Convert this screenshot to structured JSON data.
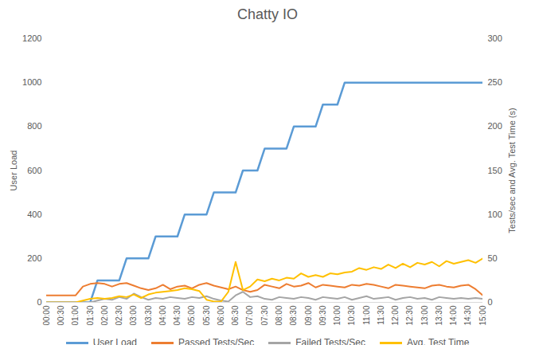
{
  "chart_data": {
    "type": "line",
    "title": "Chatty IO",
    "y_label": "User Load",
    "y2_label": "Tests/sec and Avg. Test Time (s)",
    "x": [
      0,
      15,
      30,
      45,
      60,
      75,
      90,
      105,
      120,
      135,
      150,
      165,
      180,
      195,
      210,
      225,
      240,
      255,
      270,
      285,
      300,
      315,
      330,
      345,
      360,
      375,
      390,
      405,
      420,
      435,
      450,
      465,
      480,
      495,
      510,
      525,
      540,
      555,
      570,
      585,
      600,
      615,
      630,
      645,
      660,
      675,
      690,
      705,
      720,
      735,
      750,
      765,
      780,
      795,
      810,
      825,
      840,
      855,
      870,
      885,
      900
    ],
    "xlim": [
      0,
      900
    ],
    "xticks": [
      {
        "value": 0,
        "label": "00:00"
      },
      {
        "value": 30,
        "label": "00:30"
      },
      {
        "value": 60,
        "label": "01:00"
      },
      {
        "value": 90,
        "label": "01:30"
      },
      {
        "value": 120,
        "label": "02:00"
      },
      {
        "value": 150,
        "label": "02:30"
      },
      {
        "value": 180,
        "label": "03:00"
      },
      {
        "value": 210,
        "label": "03:30"
      },
      {
        "value": 240,
        "label": "04:00"
      },
      {
        "value": 270,
        "label": "04:30"
      },
      {
        "value": 300,
        "label": "05:00"
      },
      {
        "value": 330,
        "label": "05:30"
      },
      {
        "value": 360,
        "label": "06:00"
      },
      {
        "value": 390,
        "label": "06:30"
      },
      {
        "value": 420,
        "label": "07:00"
      },
      {
        "value": 450,
        "label": "07:30"
      },
      {
        "value": 480,
        "label": "08:00"
      },
      {
        "value": 510,
        "label": "08:30"
      },
      {
        "value": 540,
        "label": "09:00"
      },
      {
        "value": 570,
        "label": "09:30"
      },
      {
        "value": 600,
        "label": "10:00"
      },
      {
        "value": 630,
        "label": "10:30"
      },
      {
        "value": 660,
        "label": "11:00"
      },
      {
        "value": 690,
        "label": "11:30"
      },
      {
        "value": 720,
        "label": "12:00"
      },
      {
        "value": 750,
        "label": "12:30"
      },
      {
        "value": 780,
        "label": "13:00"
      },
      {
        "value": 810,
        "label": "13:30"
      },
      {
        "value": 840,
        "label": "14:00"
      },
      {
        "value": 870,
        "label": "14:30"
      },
      {
        "value": 900,
        "label": "15:00"
      }
    ],
    "ylim": [
      0,
      1200
    ],
    "yticks": [
      0,
      200,
      400,
      600,
      800,
      1000,
      1200
    ],
    "y2lim": [
      0,
      300
    ],
    "y2ticks": [
      0,
      50,
      100,
      150,
      200,
      250,
      300
    ],
    "grid": false,
    "legend": "bottom",
    "series": [
      {
        "name": "User Load",
        "color": "#5b9bd5",
        "values": [
          0,
          0,
          0,
          0,
          0,
          0,
          0,
          100,
          100,
          100,
          100,
          200,
          200,
          200,
          200,
          300,
          300,
          300,
          300,
          400,
          400,
          400,
          400,
          500,
          500,
          500,
          500,
          600,
          600,
          600,
          700,
          700,
          700,
          700,
          800,
          800,
          800,
          800,
          900,
          900,
          900,
          1000,
          1000,
          1000,
          1000,
          1000,
          1000,
          1000,
          1000,
          1000,
          1000,
          1000,
          1000,
          1000,
          1000,
          1000,
          1000,
          1000,
          1000,
          1000,
          1000
        ]
      },
      {
        "name": "Passed Tests/Sec",
        "color": "#ed7d31",
        "axis": "y2",
        "values": [
          8,
          8,
          8,
          8,
          8,
          18,
          21,
          22,
          21,
          18,
          21,
          22,
          19,
          16,
          14,
          16,
          20,
          15,
          18,
          19,
          16,
          20,
          22,
          19,
          17,
          15,
          18,
          14,
          12,
          14,
          20,
          18,
          16,
          21,
          18,
          19,
          22,
          17,
          20,
          19,
          18,
          17,
          20,
          19,
          21,
          20,
          18,
          16,
          20,
          19,
          18,
          17,
          16,
          19,
          20,
          18,
          17,
          19,
          20,
          15,
          8
        ]
      },
      {
        "name": "Failed Tests/Sec",
        "color": "#a5a5a5",
        "axis": "y2",
        "values": [
          0,
          0,
          0,
          0,
          0,
          0,
          0,
          2,
          4,
          3,
          6,
          4,
          10,
          6,
          3,
          5,
          4,
          6,
          5,
          4,
          6,
          5,
          7,
          4,
          2,
          1,
          8,
          12,
          6,
          7,
          4,
          3,
          6,
          5,
          4,
          6,
          5,
          3,
          6,
          5,
          4,
          6,
          3,
          5,
          7,
          4,
          5,
          6,
          3,
          5,
          6,
          4,
          5,
          3,
          6,
          5,
          4,
          5,
          4,
          5,
          4
        ]
      },
      {
        "name": "Avg. Test Time",
        "color": "#ffc000",
        "axis": "y2",
        "values": [
          0,
          0,
          0,
          0,
          0,
          2,
          4,
          5,
          4,
          5,
          7,
          6,
          9,
          5,
          9,
          11,
          12,
          13,
          14,
          16,
          15,
          13,
          3,
          1,
          1,
          12,
          46,
          14,
          18,
          26,
          24,
          27,
          25,
          28,
          27,
          33,
          29,
          31,
          29,
          33,
          32,
          34,
          35,
          39,
          37,
          40,
          38,
          43,
          39,
          44,
          40,
          45,
          43,
          46,
          41,
          47,
          44,
          46,
          48,
          45,
          50
        ]
      }
    ]
  }
}
